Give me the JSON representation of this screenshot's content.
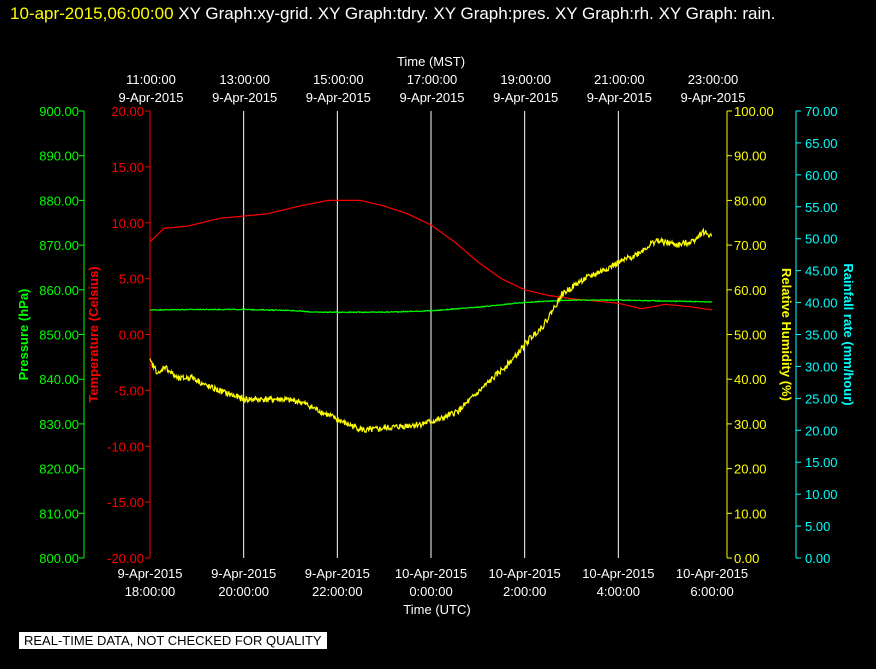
{
  "header": {
    "timestamp": "10-apr-2015,06:00:00",
    "graphs": "XY Graph:xy-grid.  XY Graph:tdry.  XY Graph:pres.  XY Graph:rh.  XY Graph: rain."
  },
  "footer": {
    "disclaimer": "REAL-TIME DATA, NOT CHECKED FOR QUALITY"
  },
  "colors": {
    "background": "#000000",
    "temperature": "#ff0000",
    "pressure": "#00ff00",
    "humidity": "#ffff00",
    "rainfall": "#00ffff",
    "grid": "#ffffff"
  },
  "chart_data": {
    "type": "line",
    "grid": "vertical",
    "x_top": {
      "label": "Time (MST)",
      "ticks": [
        {
          "time": "11:00:00",
          "date": "9-Apr-2015"
        },
        {
          "time": "13:00:00",
          "date": "9-Apr-2015"
        },
        {
          "time": "15:00:00",
          "date": "9-Apr-2015"
        },
        {
          "time": "17:00:00",
          "date": "9-Apr-2015"
        },
        {
          "time": "19:00:00",
          "date": "9-Apr-2015"
        },
        {
          "time": "21:00:00",
          "date": "9-Apr-2015"
        },
        {
          "time": "23:00:00",
          "date": "9-Apr-2015"
        }
      ]
    },
    "x_bottom": {
      "label": "Time (UTC)",
      "range": [
        "2015-04-09 18:00",
        "2015-04-10 06:00"
      ],
      "ticks": [
        {
          "date": "9-Apr-2015",
          "time": "18:00:00"
        },
        {
          "date": "9-Apr-2015",
          "time": "20:00:00"
        },
        {
          "date": "9-Apr-2015",
          "time": "22:00:00"
        },
        {
          "date": "10-Apr-2015",
          "time": "0:00:00"
        },
        {
          "date": "10-Apr-2015",
          "time": "2:00:00"
        },
        {
          "date": "10-Apr-2015",
          "time": "4:00:00"
        },
        {
          "date": "10-Apr-2015",
          "time": "6:00:00"
        }
      ]
    },
    "axes": {
      "pressure": {
        "label": "Pressure (hPa)",
        "range": [
          800,
          900
        ],
        "ticks": [
          "800.00",
          "810.00",
          "820.00",
          "830.00",
          "840.00",
          "850.00",
          "860.00",
          "870.00",
          "880.00",
          "890.00",
          "900.00"
        ]
      },
      "temperature": {
        "label": "Temperature (Celsius)",
        "range": [
          -20,
          20
        ],
        "ticks": [
          "-20.00",
          "-15.00",
          "-10.00",
          "-5.00",
          "0.00",
          "5.00",
          "10.00",
          "15.00",
          "20.00"
        ]
      },
      "humidity": {
        "label": "Relative Humidity (%)",
        "range": [
          0,
          100
        ],
        "ticks": [
          "0.00",
          "10.00",
          "20.00",
          "30.00",
          "40.00",
          "50.00",
          "60.00",
          "70.00",
          "80.00",
          "90.00",
          "100.00"
        ]
      },
      "rainfall": {
        "label": "Rainfall rate (mm/hour)",
        "range": [
          0,
          70
        ],
        "ticks": [
          "0.00",
          "5.00",
          "10.00",
          "15.00",
          "20.00",
          "25.00",
          "30.00",
          "35.00",
          "40.00",
          "45.00",
          "50.00",
          "55.00",
          "60.00",
          "65.00",
          "70.00"
        ]
      }
    },
    "series": [
      {
        "name": "tdry",
        "axis": "temperature",
        "color": "#ff0000",
        "x_hours": [
          0,
          0.3,
          0.8,
          1.5,
          2.5,
          3.2,
          3.8,
          4.5,
          5.0,
          5.5,
          6.0,
          6.5,
          7.0,
          7.5,
          8.0,
          8.5,
          9.0,
          9.5,
          10.0,
          10.5,
          11.0,
          11.5,
          12.0
        ],
        "values": [
          8.3,
          9.5,
          9.7,
          10.4,
          10.8,
          11.5,
          12.0,
          12.0,
          11.5,
          10.8,
          9.8,
          8.3,
          6.5,
          5.0,
          4.0,
          3.5,
          3.2,
          3.0,
          2.8,
          2.3,
          2.7,
          2.5,
          2.2
        ]
      },
      {
        "name": "pres",
        "axis": "pressure",
        "color": "#00ff00",
        "x_hours": [
          0,
          1,
          2,
          3,
          3.5,
          4,
          5,
          6,
          7,
          8,
          9,
          10,
          11,
          12
        ],
        "values": [
          855.5,
          855.6,
          855.6,
          855.4,
          855.0,
          855.0,
          855.0,
          855.3,
          856.1,
          857.2,
          857.7,
          857.7,
          857.5,
          857.3
        ],
        "noise": 0.1
      },
      {
        "name": "rh",
        "axis": "humidity",
        "color": "#ffff00",
        "x_hours": [
          0,
          0.2,
          0.3,
          0.6,
          0.9,
          1.2,
          1.6,
          2.0,
          2.4,
          2.8,
          3.2,
          3.7,
          4.2,
          4.6,
          5.0,
          5.4,
          5.8,
          6.2,
          6.6,
          7.0,
          7.4,
          7.8,
          8.1,
          8.4,
          8.8,
          9.2,
          9.6,
          10.0,
          10.4,
          10.8,
          11.3,
          11.6,
          11.8,
          12.0
        ],
        "values": [
          44,
          41,
          43,
          40,
          40.5,
          38.5,
          37,
          35.5,
          35.5,
          35.5,
          35,
          32.5,
          30,
          28.5,
          29,
          29.5,
          30,
          31,
          33,
          37,
          41,
          45,
          49,
          52,
          59,
          62,
          64,
          66,
          68,
          71,
          70,
          71,
          73,
          72
        ],
        "noise": 0.7
      },
      {
        "name": "rain",
        "axis": "rainfall",
        "color": "#00ffff",
        "x_hours": [],
        "values": []
      }
    ]
  }
}
